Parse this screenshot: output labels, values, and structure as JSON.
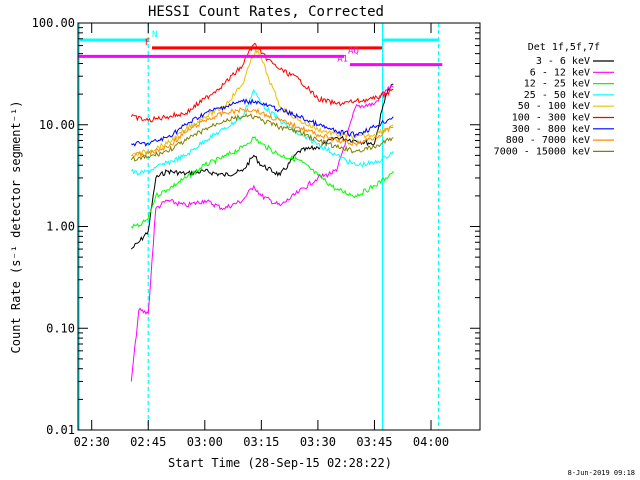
{
  "chart_data": {
    "type": "line",
    "title": "HESSI Count Rates, Corrected",
    "xlabel": "Start Time (28-Sep-15 02:28:22)",
    "ylabel": "Count Rate (s⁻¹ detector segment⁻¹)",
    "y_scale": "log",
    "ylim": [
      0.01,
      100.0
    ],
    "xlim": [
      "02:26:22",
      "04:13:00"
    ],
    "x_ticks": [
      "02:30",
      "02:45",
      "03:00",
      "03:15",
      "03:30",
      "03:45",
      "04:00"
    ],
    "y_ticks": [
      "100.00",
      "10.00",
      "1.00",
      "0.10",
      "0.01"
    ],
    "legend_title": "Det 1f,5f,7f",
    "legend_position": "right",
    "footer": "8-Jun-2019 09:18",
    "series": [
      {
        "name": "3 - 6 keV",
        "color": "#000000",
        "x": [
          "02:40:30",
          "02:42:30",
          "02:45:00",
          "02:47:00",
          "02:50:00",
          "02:55:00",
          "03:00:00",
          "03:05:00",
          "03:10:00",
          "03:13:00",
          "03:15:00",
          "03:20:00",
          "03:25:00",
          "03:30:00",
          "03:35:00",
          "03:40:00",
          "03:45:00",
          "03:48:00",
          "03:50:00"
        ],
        "y": [
          0.6,
          0.7,
          0.9,
          3.0,
          3.5,
          3.3,
          3.5,
          3.2,
          3.5,
          5.0,
          4.0,
          3.2,
          5.5,
          6.0,
          7.5,
          7.0,
          6.5,
          20,
          25
        ]
      },
      {
        "name": "6 - 12 keV",
        "color": "#ff00ff",
        "x": [
          "02:40:30",
          "02:42:30",
          "02:45:00",
          "02:47:00",
          "02:50:00",
          "02:55:00",
          "03:00:00",
          "03:05:00",
          "03:10:00",
          "03:13:00",
          "03:15:00",
          "03:20:00",
          "03:25:00",
          "03:30:00",
          "03:35:00",
          "03:40:00",
          "03:45:00",
          "03:48:00",
          "03:50:00"
        ],
        "y": [
          0.03,
          0.15,
          0.14,
          1.5,
          1.8,
          1.6,
          1.8,
          1.5,
          1.8,
          2.5,
          2.0,
          1.6,
          2.2,
          3.0,
          3.5,
          15,
          16,
          22,
          24
        ]
      },
      {
        "name": "12 - 25 keV",
        "color": "#00ff00",
        "x": [
          "02:40:30",
          "02:42:30",
          "02:45:00",
          "02:47:00",
          "02:50:00",
          "02:55:00",
          "03:00:00",
          "03:05:00",
          "03:10:00",
          "03:13:00",
          "03:15:00",
          "03:20:00",
          "03:25:00",
          "03:30:00",
          "03:35:00",
          "03:40:00",
          "03:45:00",
          "03:48:00",
          "03:50:00"
        ],
        "y": [
          1.0,
          1.0,
          1.2,
          2.0,
          2.3,
          3.0,
          4.0,
          4.8,
          6.0,
          7.5,
          6.5,
          5.0,
          4.5,
          3.2,
          2.3,
          2.0,
          2.5,
          3.0,
          3.5
        ]
      },
      {
        "name": "25 - 50 keV",
        "color": "#00ffff",
        "x": [
          "02:40:30",
          "02:42:30",
          "02:45:00",
          "02:47:00",
          "02:50:00",
          "02:55:00",
          "03:00:00",
          "03:05:00",
          "03:10:00",
          "03:13:00",
          "03:15:00",
          "03:20:00",
          "03:25:00",
          "03:30:00",
          "03:35:00",
          "03:40:00",
          "03:45:00",
          "03:48:00",
          "03:50:00"
        ],
        "y": [
          3.5,
          3.3,
          3.5,
          3.8,
          4.2,
          5.0,
          7.0,
          9.0,
          12,
          22,
          16,
          11,
          8.0,
          6.5,
          5.0,
          4.0,
          4.2,
          4.8,
          5.5
        ]
      },
      {
        "name": "50 - 100 keV",
        "color": "#e8c000",
        "x": [
          "02:40:30",
          "02:45:00",
          "02:50:00",
          "02:55:00",
          "03:00:00",
          "03:05:00",
          "03:10:00",
          "03:12:00",
          "03:13:30",
          "03:15:00",
          "03:17:00",
          "03:20:00",
          "03:25:00",
          "03:30:00",
          "03:35:00",
          "03:40:00",
          "03:45:00",
          "03:50:00"
        ],
        "y": [
          5.0,
          5.5,
          6.5,
          9.0,
          12,
          15,
          25,
          40,
          55,
          45,
          28,
          15,
          11,
          9.0,
          8.0,
          7.5,
          8.0,
          10
        ]
      },
      {
        "name": "100 - 300 keV",
        "color": "#ff0000",
        "x": [
          "02:40:30",
          "02:45:00",
          "02:50:00",
          "02:55:00",
          "03:00:00",
          "03:05:00",
          "03:10:00",
          "03:12:00",
          "03:13:30",
          "03:15:00",
          "03:18:00",
          "03:20:00",
          "03:25:00",
          "03:30:00",
          "03:35:00",
          "03:40:00",
          "03:45:00",
          "03:50:00"
        ],
        "y": [
          12,
          11,
          12,
          13,
          18,
          25,
          38,
          55,
          62,
          50,
          40,
          35,
          28,
          18,
          16,
          17,
          18,
          22
        ]
      },
      {
        "name": "300 - 800 keV",
        "color": "#0000ff",
        "x": [
          "02:40:30",
          "02:45:00",
          "02:50:00",
          "02:55:00",
          "03:00:00",
          "03:05:00",
          "03:10:00",
          "03:13:30",
          "03:15:00",
          "03:20:00",
          "03:25:00",
          "03:30:00",
          "03:35:00",
          "03:40:00",
          "03:45:00",
          "03:50:00"
        ],
        "y": [
          6.5,
          6.5,
          7.5,
          10,
          13,
          15,
          17,
          17,
          16,
          14,
          12,
          10,
          8.5,
          8.0,
          9.5,
          12
        ]
      },
      {
        "name": "800 - 7000 keV",
        "color": "#ff8c00",
        "x": [
          "02:40:30",
          "02:45:00",
          "02:50:00",
          "02:55:00",
          "03:00:00",
          "03:05:00",
          "03:10:00",
          "03:13:30",
          "03:15:00",
          "03:20:00",
          "03:25:00",
          "03:30:00",
          "03:35:00",
          "03:40:00",
          "03:45:00",
          "03:50:00"
        ],
        "y": [
          5.0,
          5.2,
          6.0,
          8.5,
          11,
          13,
          14,
          14,
          13,
          11,
          9.5,
          8.0,
          7.0,
          6.5,
          7.5,
          9.5
        ]
      },
      {
        "name": "7000 - 15000 keV",
        "color": "#808000",
        "x": [
          "02:40:30",
          "02:45:00",
          "02:50:00",
          "02:55:00",
          "03:00:00",
          "03:05:00",
          "03:10:00",
          "03:13:30",
          "03:15:00",
          "03:20:00",
          "03:25:00",
          "03:30:00",
          "03:35:00",
          "03:40:00",
          "03:45:00",
          "03:50:00"
        ],
        "y": [
          4.5,
          4.8,
          5.5,
          7.0,
          9.0,
          11,
          12,
          12,
          11,
          9.5,
          8.5,
          7.0,
          6.0,
          5.5,
          6.0,
          7.5
        ]
      }
    ],
    "vertical_markers": [
      {
        "time": "02:26:40",
        "color": "#00ffff",
        "style": "solid"
      },
      {
        "time": "02:45:00",
        "color": "#00ffff",
        "style": "dashed"
      },
      {
        "time": "03:47:10",
        "color": "#00ffff",
        "style": "solid"
      },
      {
        "time": "04:02:00",
        "color": "#00ffff",
        "style": "dashed"
      }
    ],
    "flag_bars": [
      {
        "label": "N",
        "color": "#00ffff",
        "segments": [
          [
            "02:26:22",
            "02:45:00"
          ],
          [
            "03:47:10",
            "04:02:00"
          ]
        ],
        "y": 68,
        "label_time": "02:46:00",
        "label_side": "right"
      },
      {
        "label": "F",
        "color": "#ff0000",
        "segments": [
          [
            "02:46:00",
            "03:47:00"
          ]
        ],
        "y": 57,
        "label_time": "02:45:30",
        "label_side": "left"
      },
      {
        "label": "AQ",
        "color": "#ff00ff",
        "segments": [
          [
            "02:26:22",
            "03:37:00"
          ]
        ],
        "y": 47,
        "label_time": "03:38:00",
        "label_side": "right"
      },
      {
        "label": "A1",
        "color": "#ff00ff",
        "segments": [
          [
            "03:38:30",
            "04:03:00"
          ]
        ],
        "y": 39,
        "label_time": "03:38:00",
        "label_side": "left"
      }
    ]
  }
}
